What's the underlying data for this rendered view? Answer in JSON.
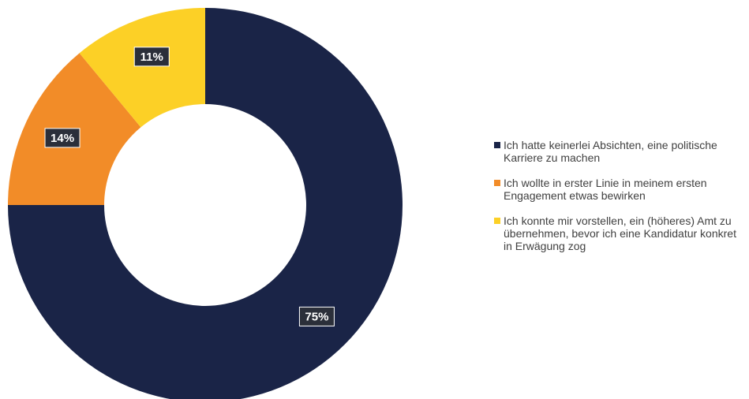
{
  "chart_data": {
    "type": "pie",
    "variant": "donut",
    "start_angle_deg": 0,
    "direction": "clockwise",
    "legend_position": "right",
    "slices": [
      {
        "name": "Ich hatte keinerlei Absichten, eine politische Karriere zu machen",
        "value": 75,
        "label": "75%",
        "color": "#1a2447"
      },
      {
        "name": "Ich wollte in erster Linie in meinem ersten Engagement etwas bewirken",
        "value": 14,
        "label": "14%",
        "color": "#f28c28"
      },
      {
        "name": "Ich konnte mir vorstellen, ein (höheres) Amt zu übernehmen, bevor ich eine Kandidatur konkret in Erwägung zog",
        "value": 11,
        "label": "11%",
        "color": "#fcd026"
      }
    ]
  }
}
